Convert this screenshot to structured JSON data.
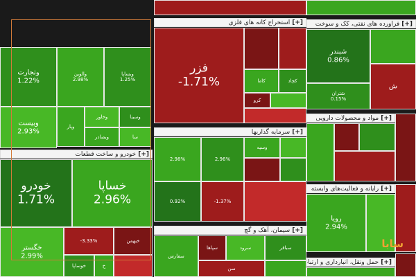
{
  "sections": {
    "khodro": "خودرو و ساخت قطعات",
    "felezat": "استخراج کانه های فلزی",
    "naft": "فراورده های نفتی، کک و سوخت",
    "sarmaye": "سرمایه گذاریها",
    "daroo": "مواد و محصولات دارویی",
    "rayane": "رایانه و فعالیت‌های وابسته",
    "siman": "سیمان، آهک و گچ",
    "haml": "حمل ونقل، انبارداری و ارتباطات",
    "plus": "[+]"
  },
  "tiles": {
    "vtejarat": {
      "name": "وتجارت",
      "pct": "1.22%"
    },
    "valvin": {
      "name": "والوین",
      "pct": "2.98%"
    },
    "vbsapa": {
      "name": "وبساپا",
      "pct": "1.25%"
    },
    "vbemellat": {
      "name": "وبیست",
      "pct": "2.93%"
    },
    "vkhavar": {
      "name": "وخاور",
      "pct": ""
    },
    "vsina": {
      "name": "وسینا",
      "pct": ""
    },
    "vpar": {
      "name": "وپار",
      "pct": ""
    },
    "vbsadr": {
      "name": "وبصادر",
      "pct": ""
    },
    "sa": {
      "name": "سا",
      "pct": ""
    },
    "khodro": {
      "name": "خودرو",
      "pct": "1.71%"
    },
    "khsapa": {
      "name": "خساپا",
      "pct": "2.96%"
    },
    "khgostar": {
      "name": "خگستر",
      "pct": "2.99%"
    },
    "khbahman": {
      "name": "خبهمن",
      "pct": ""
    },
    "kh": {
      "name": "خ",
      "pct": ""
    },
    "khosapa": {
      "name": "خوساپا",
      "pct": ""
    },
    "khneg": {
      "name": "",
      "pct": "-3.33%"
    },
    "fazar": {
      "name": "فزر",
      "pct": "-1.71%"
    },
    "kama": {
      "name": "کاما",
      "pct": ""
    },
    "kchad": {
      "name": "کچاد",
      "pct": ""
    },
    "krooy": {
      "name": "کرو",
      "pct": ""
    },
    "shbandar": {
      "name": "شبندر",
      "pct": "0.86%"
    },
    "shtran": {
      "name": "شتران",
      "pct": "0.15%"
    },
    "sh": {
      "name": "ش",
      "pct": ""
    },
    "vsapa": {
      "name": "وسپه",
      "pct": ""
    },
    "sarmaye1": {
      "name": "",
      "pct": "2.98%"
    },
    "sarmaye2": {
      "name": "",
      "pct": "2.96%"
    },
    "sarmaye3": {
      "name": "",
      "pct": "0.92%"
    },
    "sarmaye4": {
      "name": "",
      "pct": "-1.37%"
    },
    "rayaneh": {
      "name": "رویا",
      "pct": "2.94%"
    },
    "sarood": {
      "name": "سرود",
      "pct": ""
    },
    "sfars": {
      "name": "سفارس",
      "pct": ""
    },
    "sepaha": {
      "name": "سپاها",
      "pct": ""
    },
    "sbaqer": {
      "name": "سباقر",
      "pct": ""
    },
    "sneg": {
      "name": "سن",
      "pct": ""
    },
    "logo": "سابا"
  }
}
